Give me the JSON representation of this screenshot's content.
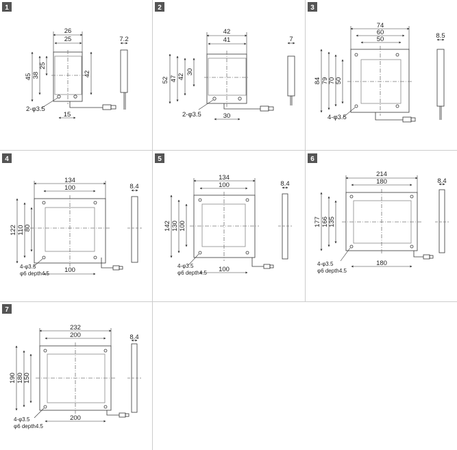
{
  "panels": [
    {
      "number": "1",
      "dims": {
        "outer_w": "26",
        "inner_w": "25",
        "thickness": "7.2",
        "h_outer": "45",
        "h_mid": "38",
        "h_inner": "25",
        "h_right": "42",
        "hole_spacing": "15",
        "hole_label": "2-φ3.5"
      }
    },
    {
      "number": "2",
      "dims": {
        "outer_w": "42",
        "inner_w": "41",
        "thickness": "7",
        "h_outer": "52",
        "h_mid": "47",
        "h_mid2": "42",
        "h_inner": "30",
        "hole_spacing": "30",
        "hole_label": "2-φ3.5"
      }
    },
    {
      "number": "3",
      "dims": {
        "w1": "74",
        "w2": "60",
        "w3": "50",
        "thickness": "8.5",
        "h1": "84",
        "h2": "79",
        "h3": "70",
        "h4": "50",
        "hole_label": "4-φ3.5"
      }
    },
    {
      "number": "4",
      "dims": {
        "w1": "134",
        "w2": "100",
        "thickness": "8.4",
        "h1": "122",
        "h2": "110",
        "h3": "80",
        "bottom": "100",
        "hole_label": "4-φ3.5",
        "depth_label": "φ6 depth4.5"
      }
    },
    {
      "number": "5",
      "dims": {
        "w1": "134",
        "w2": "100",
        "thickness": "8.4",
        "h1": "142",
        "h2": "130",
        "h3": "100",
        "bottom": "100",
        "hole_label": "4-φ3.5",
        "depth_label": "φ6 depth4.5"
      }
    },
    {
      "number": "6",
      "dims": {
        "w1": "214",
        "w2": "180",
        "thickness": "8.4",
        "h1": "177",
        "h2": "166",
        "h3": "135",
        "bottom": "180",
        "hole_label": "4-φ3.5",
        "depth_label": "φ6 depth4.5"
      }
    },
    {
      "number": "7",
      "dims": {
        "w1": "232",
        "w2": "200",
        "thickness": "8.4",
        "h1": "190",
        "h2": "180",
        "h3": "150",
        "bottom": "200",
        "hole_label": "4-φ3.5",
        "depth_label": "φ6 depth4.5"
      }
    }
  ],
  "colors": {
    "badge": "#555555",
    "grid": "#cccccc",
    "line": "#333333",
    "window": "#888888"
  }
}
